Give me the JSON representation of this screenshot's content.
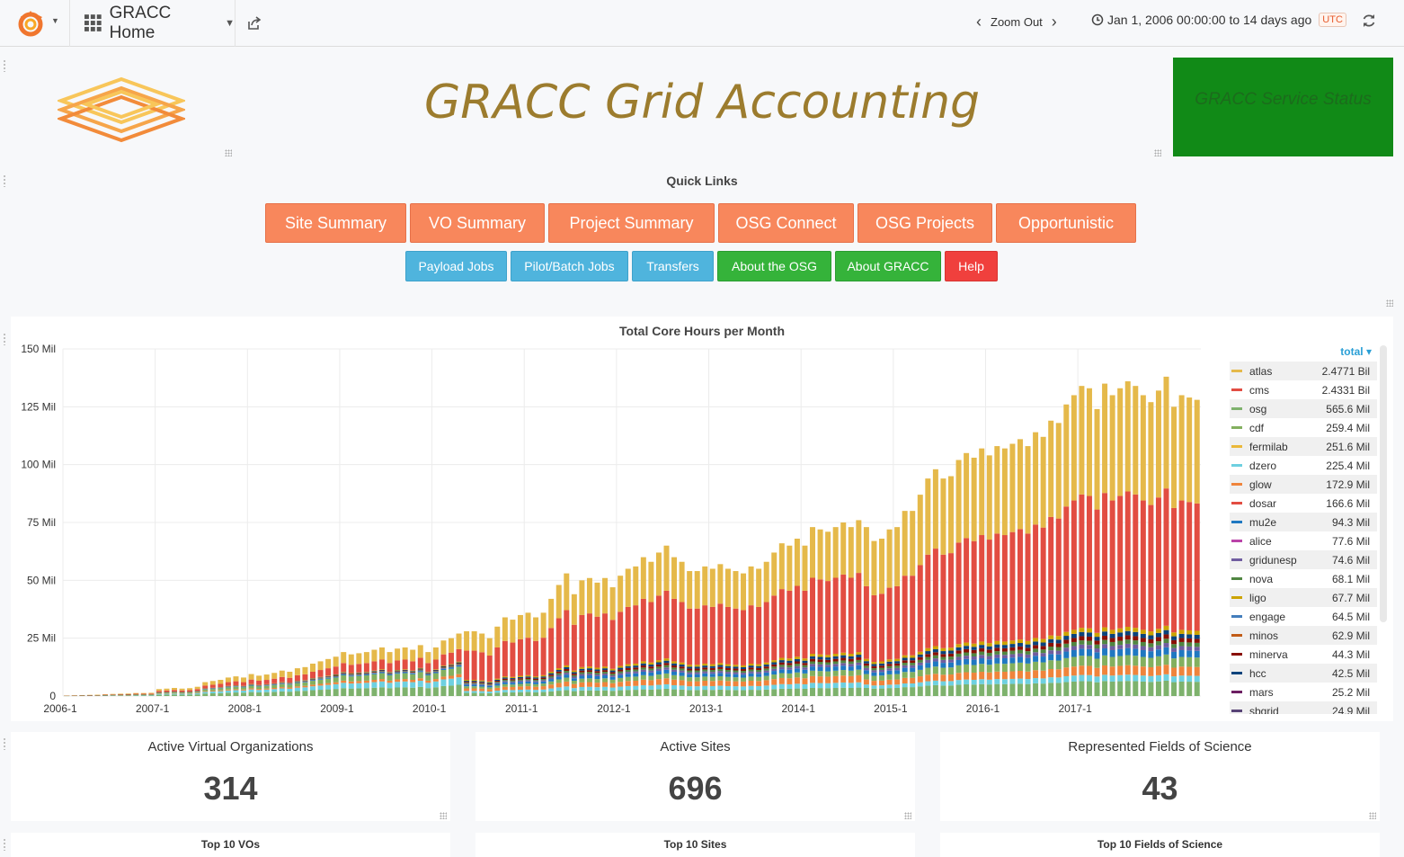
{
  "navbar": {
    "dashboard_title": "GRACC Home",
    "zoom_out_label": "Zoom Out",
    "time_range": "Jan 1, 2006 00:00:00 to 14 days ago",
    "timezone": "UTC"
  },
  "header": {
    "title": "GRACC Grid Accounting",
    "status_panel_text": "GRACC Service Status",
    "status_color": "#118a17"
  },
  "quick_links": {
    "title": "Quick Links",
    "primary": [
      "Site Summary",
      "VO Summary",
      "Project Summary",
      "OSG Connect",
      "OSG Projects",
      "Opportunistic"
    ],
    "secondary": [
      "Payload Jobs",
      "Pilot/Batch Jobs",
      "Transfers",
      "About the OSG",
      "About GRACC",
      "Help"
    ]
  },
  "chart_data": {
    "type": "bar",
    "stacked": true,
    "title": "Total Core Hours per Month",
    "ylabel": "",
    "ylim": [
      0,
      150
    ],
    "y_unit": "Mil",
    "y_ticks": [
      "0",
      "25 Mil",
      "50 Mil",
      "75 Mil",
      "100 Mil",
      "125 Mil",
      "150 Mil"
    ],
    "x_ticks": [
      "2006-1",
      "2007-1",
      "2008-1",
      "2009-1",
      "2010-1",
      "2011-1",
      "2012-1",
      "2013-1",
      "2014-1",
      "2015-1",
      "2016-1",
      "2017-1"
    ],
    "first_month": "2006-1",
    "month_totals": [
      0.2,
      0.3,
      0.4,
      0.5,
      0.6,
      0.8,
      0.9,
      1,
      1.1,
      1.3,
      1.3,
      1.4,
      3,
      3.2,
      3.5,
      3.2,
      3.4,
      4,
      6,
      6.5,
      7,
      8,
      8.5,
      8,
      9.5,
      8.8,
      9.3,
      10,
      11,
      10.5,
      12,
      12.5,
      14,
      15,
      16,
      17,
      19,
      18,
      18.5,
      19,
      20,
      21,
      19,
      20.5,
      21,
      20,
      22,
      19,
      21,
      24,
      25,
      27,
      28,
      28,
      27,
      25,
      30,
      34,
      33,
      35,
      36,
      34,
      36,
      42,
      48,
      53,
      44,
      50,
      51,
      49,
      51,
      47,
      52,
      55,
      56,
      60,
      58,
      62,
      65,
      60,
      58,
      54,
      54,
      56,
      55,
      57,
      55,
      54,
      53,
      56,
      55,
      58,
      62,
      66,
      65,
      68,
      65,
      73,
      72,
      71,
      73,
      75,
      73,
      76,
      73,
      67,
      68,
      72,
      73,
      80,
      80,
      87,
      94,
      98,
      94,
      95,
      102,
      105,
      103,
      107,
      104,
      108,
      107,
      109,
      111,
      108,
      114,
      112,
      119,
      118,
      126,
      130,
      134,
      133,
      124,
      135,
      130,
      133,
      136,
      134,
      130,
      127,
      132,
      138,
      125,
      130,
      129,
      128
    ],
    "series": [
      {
        "name": "atlas",
        "color": "#e5b94a",
        "total": "2.4771 Bil"
      },
      {
        "name": "cms",
        "color": "#e24d42",
        "total": "2.4331 Bil"
      },
      {
        "name": "osg",
        "color": "#7eb26d",
        "total": "565.6 Mil"
      },
      {
        "name": "cdf",
        "color": "#83b05f",
        "total": "259.4 Mil"
      },
      {
        "name": "fermilab",
        "color": "#eab839",
        "total": "251.6 Mil"
      },
      {
        "name": "dzero",
        "color": "#6ed0e0",
        "total": "225.4 Mil"
      },
      {
        "name": "glow",
        "color": "#ef843c",
        "total": "172.9 Mil"
      },
      {
        "name": "dosar",
        "color": "#e24d42",
        "total": "166.6 Mil"
      },
      {
        "name": "mu2e",
        "color": "#1f78c1",
        "total": "94.3 Mil"
      },
      {
        "name": "alice",
        "color": "#ba43a9",
        "total": "77.6 Mil"
      },
      {
        "name": "gridunesp",
        "color": "#705da0",
        "total": "74.6 Mil"
      },
      {
        "name": "nova",
        "color": "#508642",
        "total": "68.1 Mil"
      },
      {
        "name": "ligo",
        "color": "#cca300",
        "total": "67.7 Mil"
      },
      {
        "name": "engage",
        "color": "#447ebc",
        "total": "64.5 Mil"
      },
      {
        "name": "minos",
        "color": "#c15c17",
        "total": "62.9 Mil"
      },
      {
        "name": "minerva",
        "color": "#890f02",
        "total": "44.3 Mil"
      },
      {
        "name": "hcc",
        "color": "#0a437c",
        "total": "42.5 Mil"
      },
      {
        "name": "mars",
        "color": "#6d1f62",
        "total": "25.2 Mil"
      },
      {
        "name": "sbgrid",
        "color": "#584477",
        "total": "24.9 Mil"
      }
    ],
    "legend_header": "total"
  },
  "stats": [
    {
      "title": "Active Virtual Organizations",
      "value": "314"
    },
    {
      "title": "Active Sites",
      "value": "696"
    },
    {
      "title": "Represented Fields of Science",
      "value": "43"
    }
  ],
  "top10": [
    "Top 10 VOs",
    "Top 10 Sites",
    "Top 10 Fields of Science"
  ]
}
